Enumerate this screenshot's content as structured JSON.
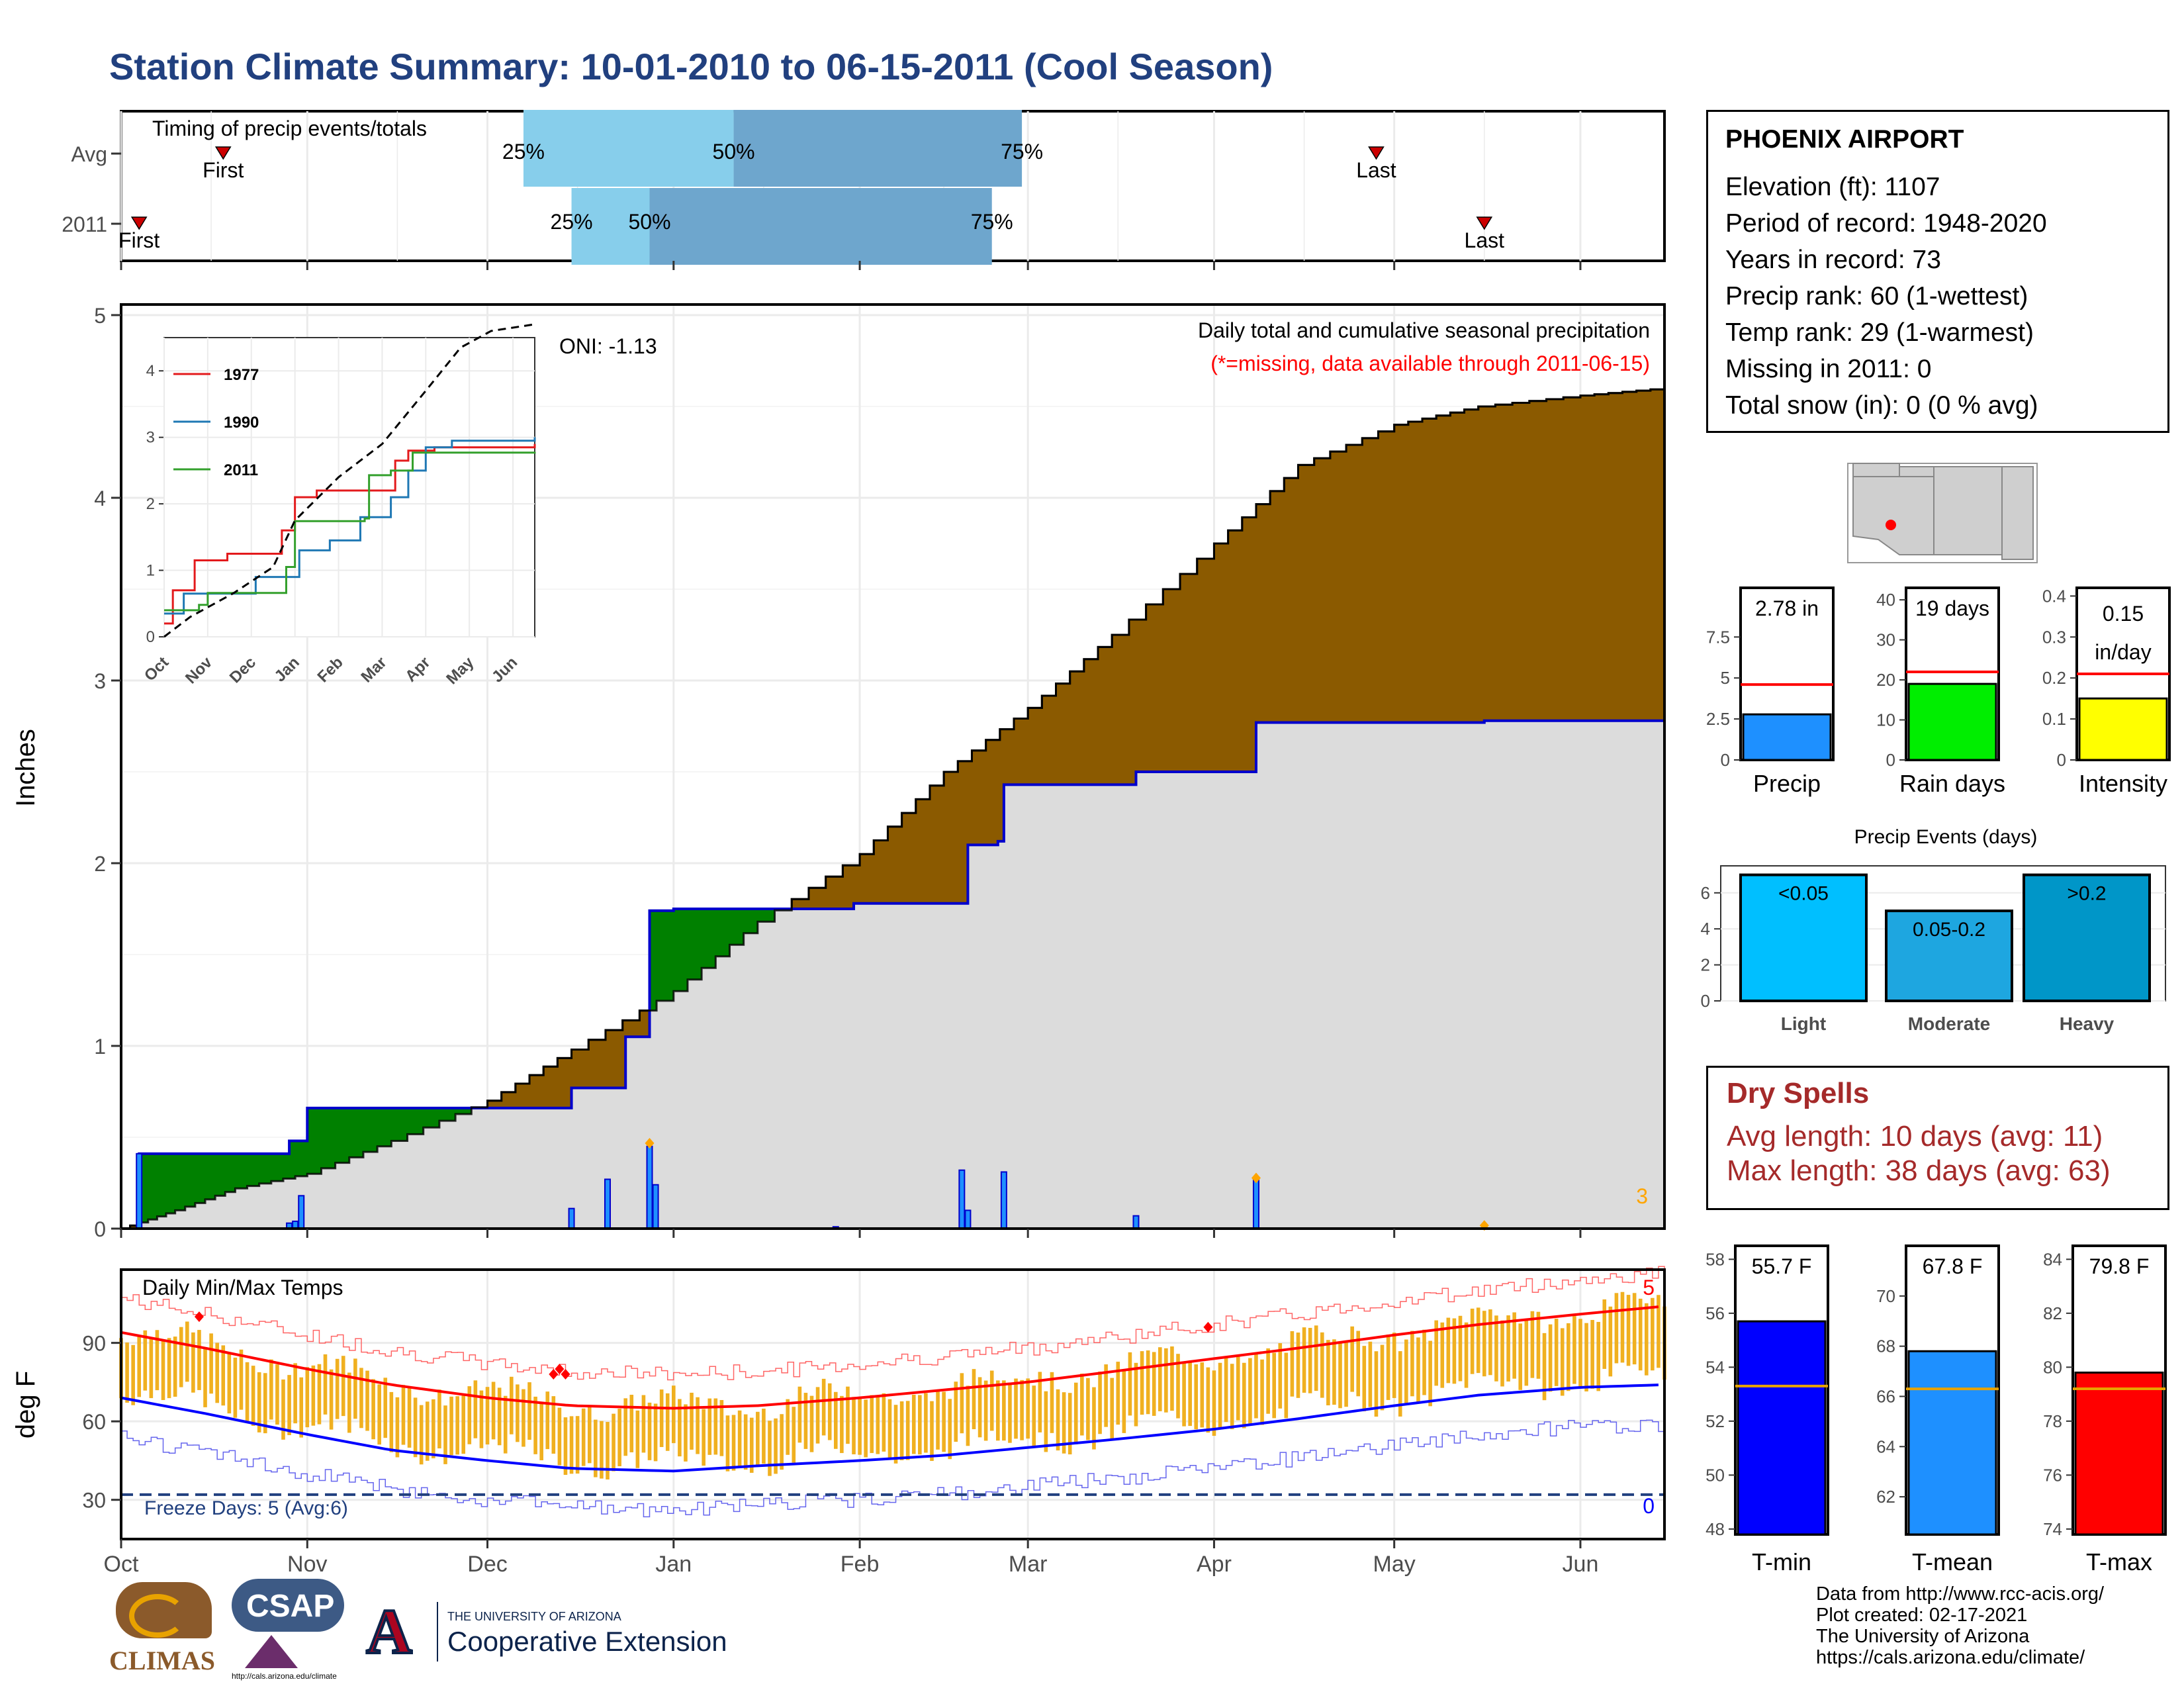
{
  "title": "Station Climate Summary: 10-01-2010 to 06-15-2011 (Cool Season)",
  "colors": {
    "title": "#21407f",
    "avg_precip_fill": "#8b5a00",
    "season_fill": "#dcdcdc",
    "season_line": "#0000cc",
    "dry_spell_text": "#a52a2a",
    "missing_note": "#ff0000",
    "inset_1977": "#e31a1c",
    "inset_1990": "#1f78b4",
    "inset_2011": "#33a02c",
    "tmin": "#0000ff",
    "tmean": "#1e90ff",
    "tmax": "#ff0000",
    "timing_light": "#87ceeb",
    "timing_dark": "#6ea6cd"
  },
  "station": {
    "name": "PHOENIX AIRPORT",
    "lines": [
      "Elevation (ft): 1107",
      "Period of record: 1948-2020",
      "Years in record: 73",
      "Precip rank: 60 (1-wettest)",
      "Temp rank: 29 (1-warmest)",
      "Missing in 2011: 0",
      "Total snow (in): 0 (0 % avg)"
    ]
  },
  "timing": {
    "title": "Timing of precip events/totals",
    "rows": [
      {
        "label": "Avg",
        "first": "2010-10-18",
        "p25": "2010-12-07",
        "p50": "2011-01-11",
        "p75": "2011-02-28",
        "last": "2011-04-28"
      },
      {
        "label": "2011",
        "first": "2010-10-04",
        "p25": "2010-12-15",
        "p50": "2010-12-28",
        "p75": "2011-02-23",
        "last": "2011-05-16"
      }
    ],
    "first_label": "First",
    "last_label": "Last",
    "pct_labels": [
      "25%",
      "50%",
      "75%"
    ]
  },
  "month_labels": [
    "Oct",
    "Nov",
    "Dec",
    "Jan",
    "Feb",
    "Mar",
    "Apr",
    "May",
    "Jun"
  ],
  "chart_data": [
    {
      "type": "area",
      "title": "Daily total and cumulative seasonal precipitation",
      "subtitle": "(*=missing, data available through 2011-06-15)",
      "ylabel": "Inches",
      "ylim": [
        0,
        5
      ],
      "yticks": [
        0,
        1,
        2,
        3,
        4,
        5
      ],
      "oni": "ONI: -1.13",
      "corner_count": "3",
      "avg_cumulative": [
        [
          "2010-10-01",
          0.0
        ],
        [
          "2010-10-10",
          0.1
        ],
        [
          "2010-10-20",
          0.22
        ],
        [
          "2010-11-01",
          0.3
        ],
        [
          "2010-11-15",
          0.48
        ],
        [
          "2010-12-01",
          0.7
        ],
        [
          "2010-12-15",
          0.98
        ],
        [
          "2011-01-01",
          1.3
        ],
        [
          "2011-01-15",
          1.68
        ],
        [
          "2011-02-01",
          2.05
        ],
        [
          "2011-02-15",
          2.5
        ],
        [
          "2011-03-01",
          2.85
        ],
        [
          "2011-03-15",
          3.25
        ],
        [
          "2011-04-01",
          3.75
        ],
        [
          "2011-04-15",
          4.18
        ],
        [
          "2011-05-01",
          4.4
        ],
        [
          "2011-05-15",
          4.5
        ],
        [
          "2011-06-01",
          4.56
        ],
        [
          "2011-06-15",
          4.6
        ]
      ],
      "season_cumulative": [
        [
          "2010-10-01",
          0.0
        ],
        [
          "2010-10-04",
          0.41
        ],
        [
          "2010-10-28",
          0.41
        ],
        [
          "2010-10-29",
          0.48
        ],
        [
          "2010-11-01",
          0.66
        ],
        [
          "2010-11-05",
          0.66
        ],
        [
          "2010-11-20",
          0.66
        ],
        [
          "2010-12-01",
          0.66
        ],
        [
          "2010-12-14",
          0.66
        ],
        [
          "2010-12-15",
          0.77
        ],
        [
          "2010-12-24",
          1.05
        ],
        [
          "2010-12-28",
          1.74
        ],
        [
          "2011-01-01",
          1.75
        ],
        [
          "2011-01-10",
          1.75
        ],
        [
          "2011-01-31",
          1.78
        ],
        [
          "2011-02-18",
          1.78
        ],
        [
          "2011-02-19",
          2.1
        ],
        [
          "2011-02-24",
          2.12
        ],
        [
          "2011-02-25",
          2.43
        ],
        [
          "2011-03-18",
          2.43
        ],
        [
          "2011-03-19",
          2.5
        ],
        [
          "2011-04-07",
          2.5
        ],
        [
          "2011-04-08",
          2.77
        ],
        [
          "2011-05-01",
          2.77
        ],
        [
          "2011-05-16",
          2.78
        ],
        [
          "2011-06-15",
          2.78
        ]
      ],
      "daily_precip": [
        [
          "2010-10-04",
          0.41
        ],
        [
          "2010-10-29",
          0.03
        ],
        [
          "2010-10-30",
          0.04
        ],
        [
          "2010-10-31",
          0.18
        ],
        [
          "2010-12-15",
          0.11
        ],
        [
          "2010-12-21",
          0.27
        ],
        [
          "2010-12-28",
          0.45
        ],
        [
          "2010-12-29",
          0.24
        ],
        [
          "2011-01-28",
          0.01
        ],
        [
          "2011-02-18",
          0.32
        ],
        [
          "2011-02-19",
          0.1
        ],
        [
          "2011-02-25",
          0.31
        ],
        [
          "2011-03-19",
          0.07
        ],
        [
          "2011-04-08",
          0.27
        ]
      ],
      "inset": {
        "xlabels": [
          "Oct",
          "Nov",
          "Dec",
          "Jan",
          "Feb",
          "Mar",
          "Apr",
          "May",
          "Jun"
        ],
        "ylim": [
          0,
          4.5
        ],
        "yticks": [
          0,
          1,
          2,
          3,
          4
        ],
        "legend": [
          "1977",
          "1990",
          "2011"
        ],
        "series": [
          {
            "name": "1977",
            "points": [
              [
                0,
                0.2
              ],
              [
                0.15,
                0.2
              ],
              [
                0.2,
                0.7
              ],
              [
                0.6,
                0.7
              ],
              [
                0.7,
                1.15
              ],
              [
                1.3,
                1.15
              ],
              [
                1.45,
                1.25
              ],
              [
                2.0,
                1.25
              ],
              [
                2.7,
                1.6
              ],
              [
                3.0,
                2.1
              ],
              [
                3.5,
                2.2
              ],
              [
                4.5,
                2.2
              ],
              [
                5.3,
                2.65
              ],
              [
                5.6,
                2.8
              ],
              [
                6.2,
                2.85
              ],
              [
                8.5,
                2.9
              ]
            ]
          },
          {
            "name": "1990",
            "points": [
              [
                0,
                0.35
              ],
              [
                0.4,
                0.35
              ],
              [
                0.45,
                0.65
              ],
              [
                1.9,
                0.65
              ],
              [
                2.1,
                0.9
              ],
              [
                3.0,
                0.9
              ],
              [
                3.1,
                1.3
              ],
              [
                3.8,
                1.45
              ],
              [
                4.5,
                1.8
              ],
              [
                5.2,
                2.1
              ],
              [
                5.6,
                2.5
              ],
              [
                6.0,
                2.85
              ],
              [
                6.6,
                2.95
              ],
              [
                8.5,
                3.0
              ]
            ]
          },
          {
            "name": "2011",
            "points": [
              [
                0,
                0.4
              ],
              [
                0.8,
                0.48
              ],
              [
                1.0,
                0.66
              ],
              [
                2.4,
                0.66
              ],
              [
                2.8,
                1.05
              ],
              [
                3.0,
                1.74
              ],
              [
                4.6,
                1.78
              ],
              [
                4.7,
                2.43
              ],
              [
                5.2,
                2.5
              ],
              [
                5.7,
                2.77
              ],
              [
                8.5,
                2.78
              ]
            ]
          }
        ],
        "average": [
          [
            0,
            0
          ],
          [
            0.6,
            0.3
          ],
          [
            1.6,
            0.66
          ],
          [
            2.5,
            1.05
          ],
          [
            3.0,
            1.75
          ],
          [
            4.0,
            2.4
          ],
          [
            5.0,
            2.9
          ],
          [
            6.0,
            3.7
          ],
          [
            6.8,
            4.35
          ],
          [
            7.5,
            4.6
          ],
          [
            8.5,
            4.7
          ]
        ]
      }
    },
    {
      "type": "bar",
      "title": "Daily Min/Max Temps",
      "ylabel": "deg F",
      "yticks": [
        30,
        60,
        90
      ],
      "ylim": [
        15,
        118
      ],
      "freeze_days_label": "Freeze Days: 5 (Avg:6)",
      "record_high_count": "5",
      "record_low_count": "0",
      "freeze_line": 32,
      "normal_max": [
        [
          "2010-10-01",
          94
        ],
        [
          "2010-10-15",
          88
        ],
        [
          "2010-11-01",
          80
        ],
        [
          "2010-11-15",
          74
        ],
        [
          "2010-12-01",
          69
        ],
        [
          "2010-12-15",
          66
        ],
        [
          "2011-01-01",
          65
        ],
        [
          "2011-01-15",
          66
        ],
        [
          "2011-02-01",
          69
        ],
        [
          "2011-02-15",
          72
        ],
        [
          "2011-03-01",
          75
        ],
        [
          "2011-03-15",
          79
        ],
        [
          "2011-04-01",
          84
        ],
        [
          "2011-04-15",
          88
        ],
        [
          "2011-05-01",
          93
        ],
        [
          "2011-05-15",
          97
        ],
        [
          "2011-06-01",
          101
        ],
        [
          "2011-06-15",
          104
        ]
      ],
      "normal_min": [
        [
          "2010-10-01",
          69
        ],
        [
          "2010-10-15",
          63
        ],
        [
          "2010-11-01",
          55
        ],
        [
          "2010-11-15",
          49
        ],
        [
          "2010-12-01",
          45
        ],
        [
          "2010-12-15",
          42
        ],
        [
          "2011-01-01",
          41
        ],
        [
          "2011-01-15",
          43
        ],
        [
          "2011-02-01",
          45
        ],
        [
          "2011-02-15",
          47
        ],
        [
          "2011-03-01",
          50
        ],
        [
          "2011-03-15",
          53
        ],
        [
          "2011-04-01",
          57
        ],
        [
          "2011-04-15",
          61
        ],
        [
          "2011-05-01",
          66
        ],
        [
          "2011-05-15",
          70
        ],
        [
          "2011-06-01",
          73
        ],
        [
          "2011-06-15",
          74
        ]
      ],
      "record_high_markers": [
        [
          "2010-10-14",
          100
        ],
        [
          "2010-12-12",
          78
        ],
        [
          "2010-12-13",
          80
        ],
        [
          "2010-12-14",
          78
        ],
        [
          "2011-03-31",
          96
        ]
      ]
    },
    {
      "type": "bar",
      "title": "Precip summary bars",
      "items": [
        {
          "label": "Precip",
          "value": 2.78,
          "text": "2.78 in",
          "avg": 4.6,
          "ylim": [
            0,
            10.5
          ],
          "yticks": [
            0.0,
            2.5,
            5.0,
            7.5
          ],
          "color": "#1e90ff"
        },
        {
          "label": "Rain days",
          "value": 19,
          "text": "19 days",
          "avg": 22,
          "ylim": [
            0,
            43
          ],
          "yticks": [
            0,
            10,
            20,
            30,
            40
          ],
          "color": "#00ee00"
        },
        {
          "label": "Intensity",
          "value": 0.15,
          "text": "0.15 in/day",
          "text_lines": [
            "0.15",
            "in/day"
          ],
          "avg": 0.21,
          "ylim": [
            0,
            0.42
          ],
          "yticks": [
            0.0,
            0.1,
            0.2,
            0.3,
            0.4
          ],
          "color": "#ffff00"
        }
      ]
    },
    {
      "type": "bar",
      "title": "Precip Events (days)",
      "categories": [
        "Light",
        "Moderate",
        "Heavy"
      ],
      "bar_labels": [
        "<0.05",
        "0.05-0.2",
        ">0.2"
      ],
      "values": [
        7,
        5,
        7
      ],
      "ylim": [
        0,
        7.5
      ],
      "yticks": [
        0,
        2,
        4,
        6
      ],
      "colors": [
        "#00bfff",
        "#1ea6e0",
        "#0096c8"
      ]
    },
    {
      "type": "bar",
      "title": "Temperature summary bars",
      "items": [
        {
          "label": "T-min",
          "value": 55.7,
          "text": "55.7 F",
          "avg": 53.3,
          "ylim": [
            47.8,
            58.5
          ],
          "yticks": [
            48,
            50,
            52,
            54,
            56,
            58
          ],
          "color": "#0000ff"
        },
        {
          "label": "T-mean",
          "value": 67.8,
          "text": "67.8 F",
          "avg": 66.3,
          "ylim": [
            60.5,
            72
          ],
          "yticks": [
            62,
            64,
            66,
            68,
            70
          ],
          "color": "#1e90ff"
        },
        {
          "label": "T-max",
          "value": 79.8,
          "text": "79.8 F",
          "avg": 79.2,
          "ylim": [
            73.8,
            84.5
          ],
          "yticks": [
            74,
            76,
            78,
            80,
            82,
            84
          ],
          "color": "#ff0000"
        }
      ]
    }
  ],
  "dry_spells": {
    "title": "Dry Spells",
    "avg_length": "Avg length: 10 days (avg: 11)",
    "max_length": "Max length: 38 days (avg: 63)"
  },
  "logos": {
    "climas": "CLIMAS",
    "csap": "CSAP",
    "csap_url": "http://cals.arizona.edu/climate",
    "ua_small": "THE UNIVERSITY OF ARIZONA",
    "ua_large": "Cooperative Extension",
    "ua_letter": "A"
  },
  "credits": [
    "Data from http://www.rcc-acis.org/",
    "Plot created: 02-17-2021",
    "The University of Arizona",
    "https://cals.arizona.edu/climate/"
  ]
}
